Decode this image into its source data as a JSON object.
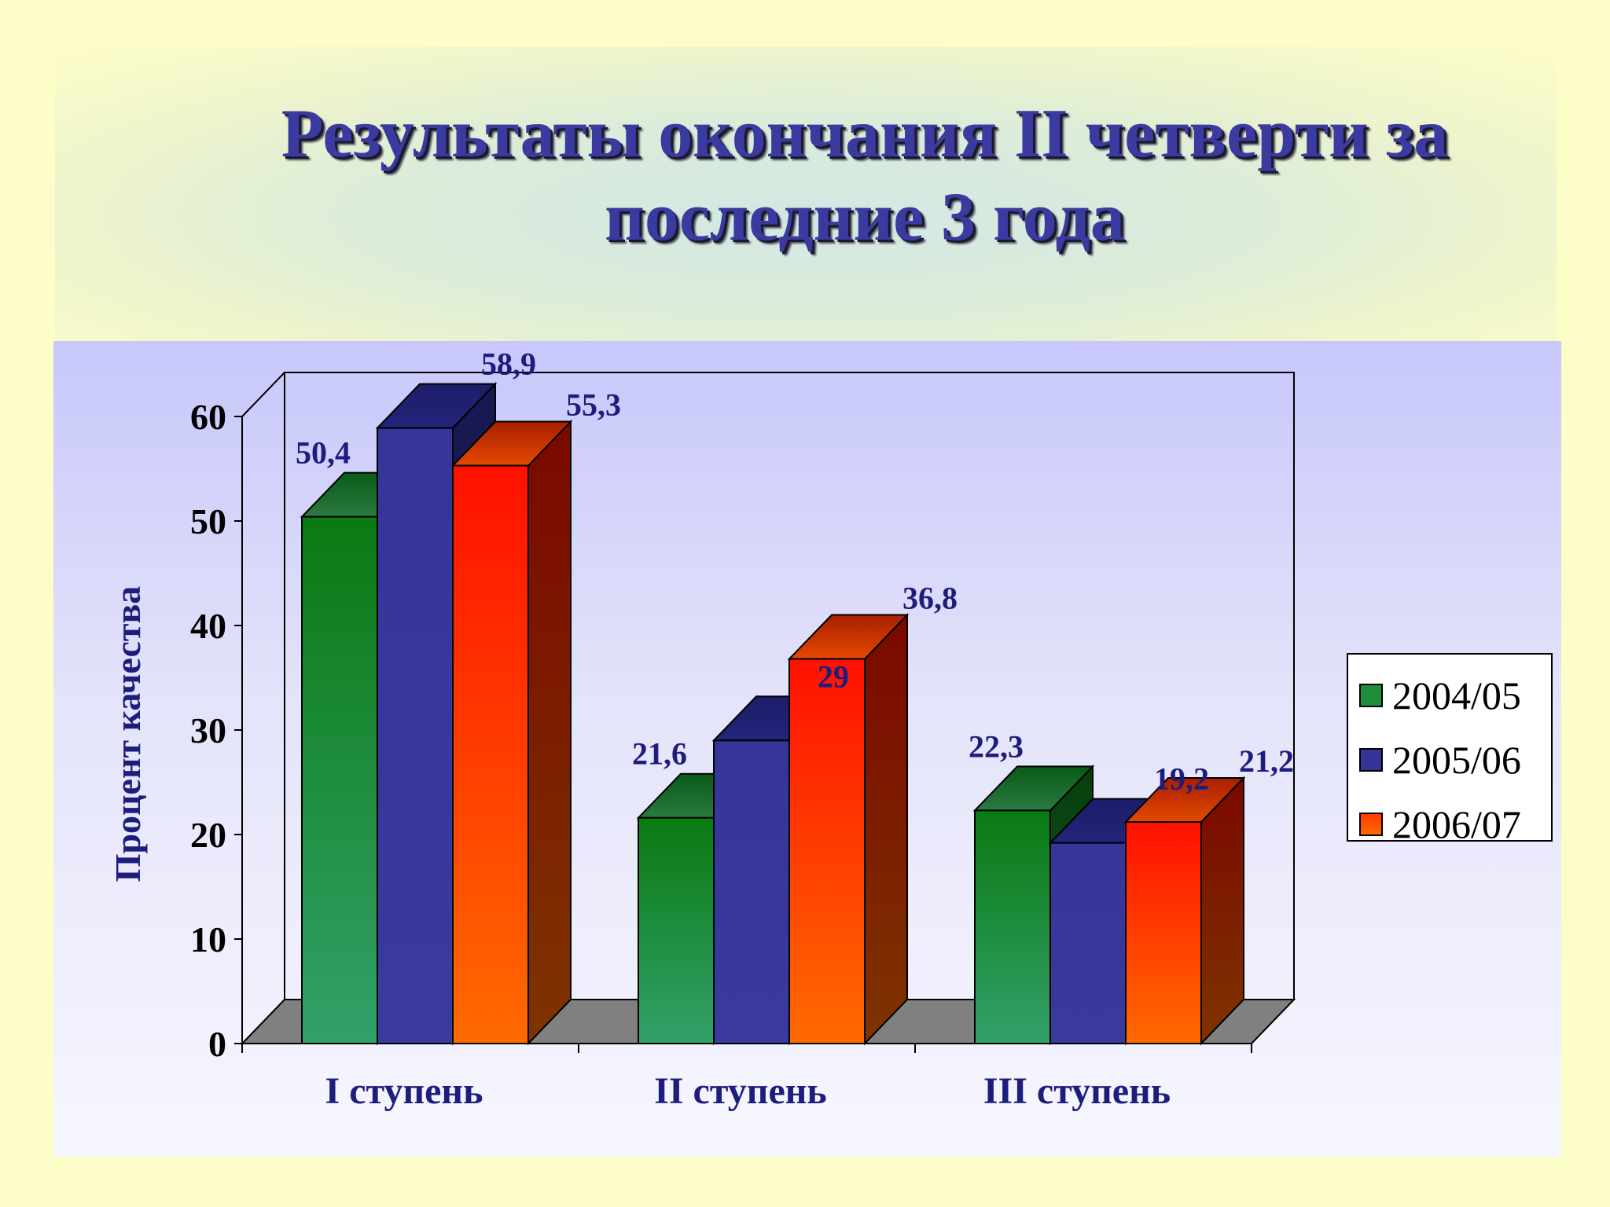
{
  "slide": {
    "title": "Результаты окончания II четверти за последние 3 года"
  },
  "chart_data": {
    "type": "bar",
    "style": "3d-clustered-column",
    "categories": [
      "I ступень",
      "II ступень",
      "III ступень"
    ],
    "series": [
      {
        "name": "2004/05",
        "values": [
          50.4,
          21.6,
          22.3
        ],
        "labels": [
          "50,4",
          "21,6",
          "22,3"
        ],
        "color": "#1f8e3a"
      },
      {
        "name": "2005/06",
        "values": [
          58.9,
          29,
          19.2
        ],
        "labels": [
          "58,9",
          "29",
          "19,2"
        ],
        "color": "#353597"
      },
      {
        "name": "2006/07",
        "values": [
          55.3,
          36.8,
          21.2
        ],
        "labels": [
          "55,3",
          "36,8",
          "21,2"
        ],
        "color": "#ff3a00"
      }
    ],
    "ylabel": "Процент качества",
    "xlabel": "",
    "ylim": [
      0,
      60
    ],
    "yticks": [
      "0",
      "10",
      "20",
      "30",
      "40",
      "50",
      "60"
    ],
    "legend_position": "right",
    "grid": false,
    "colors": {
      "value_label": "#1d1d7e",
      "category_label": "#1d1d7e",
      "floor": "#808080"
    }
  }
}
